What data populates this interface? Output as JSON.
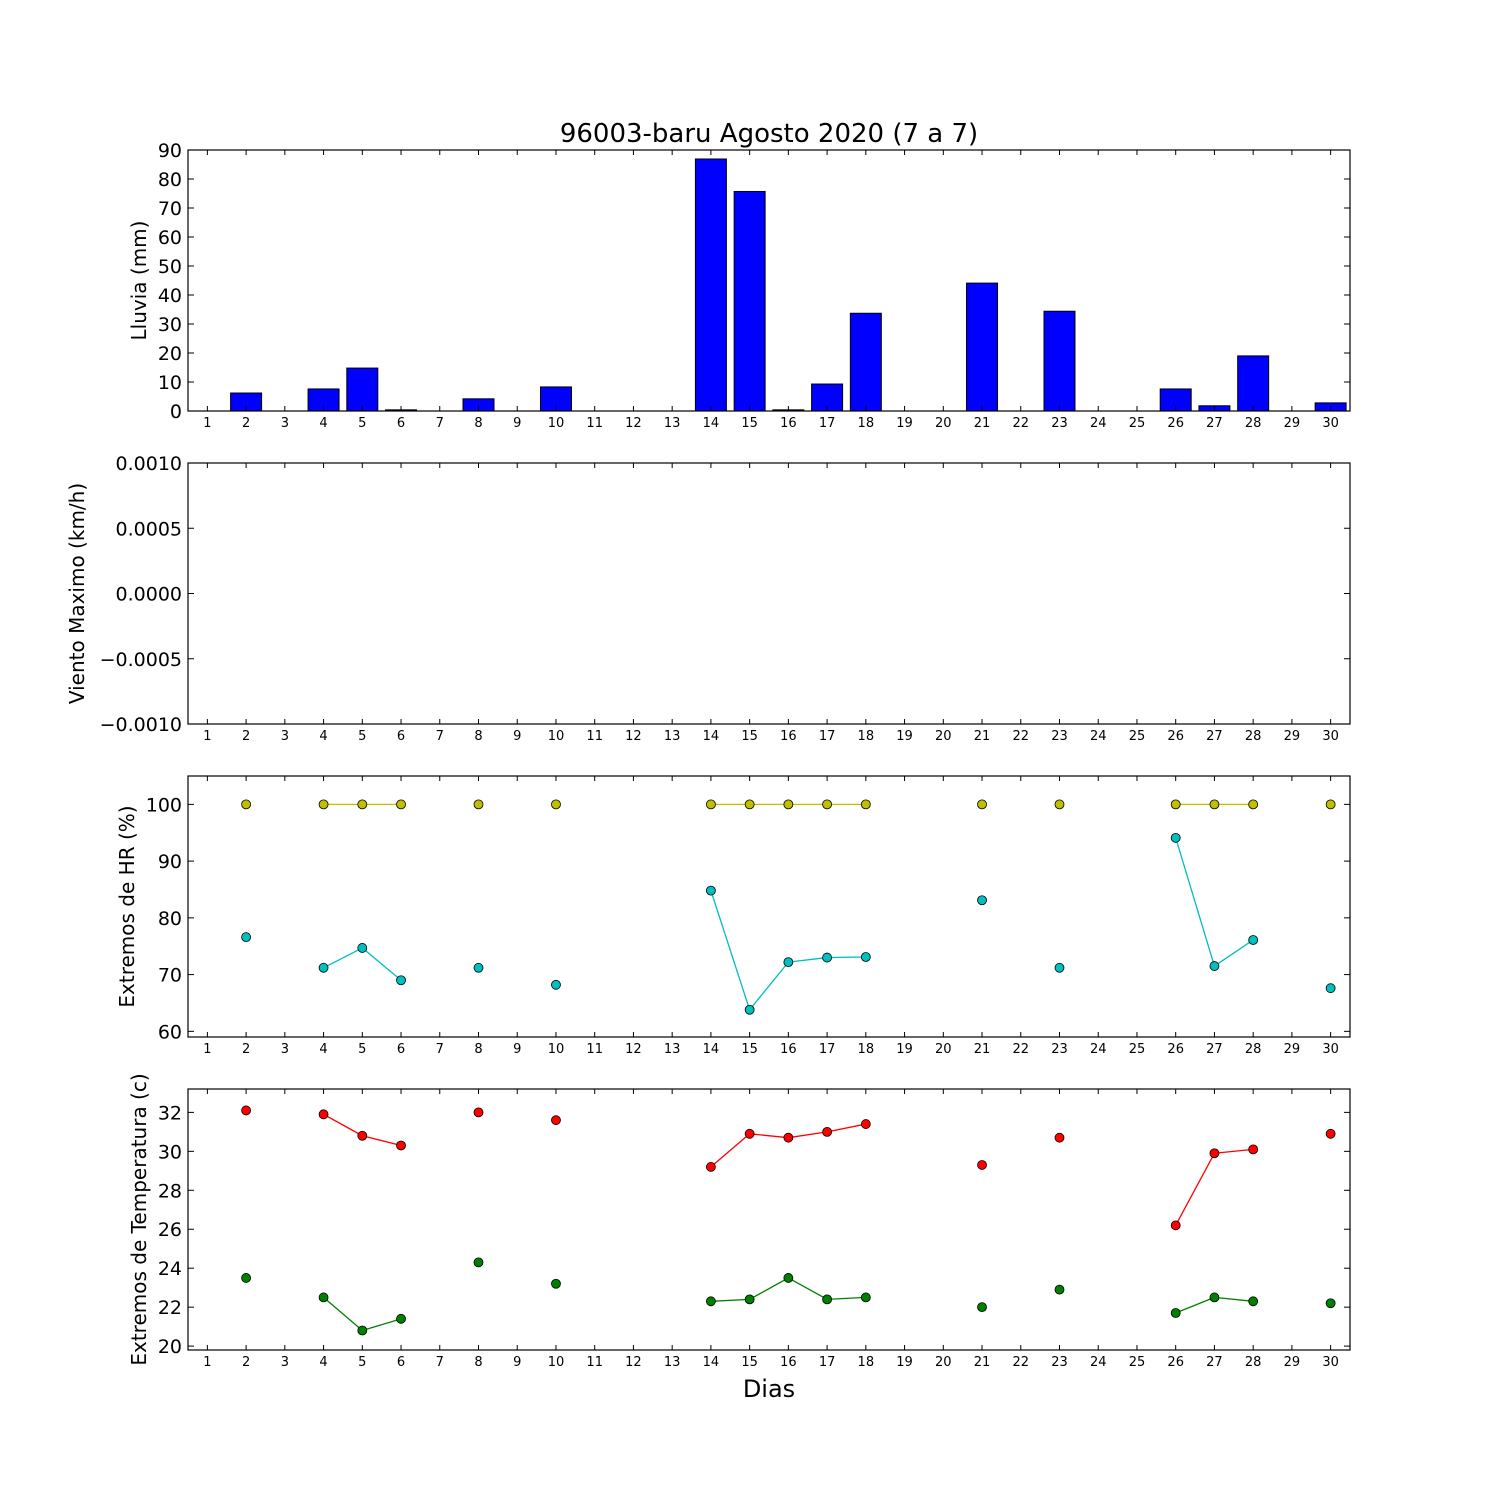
{
  "figure_title": "96003-baru Agosto 2020  (7 a 7)",
  "shared_xlabel": "Dias",
  "colors": {
    "bar": "#0000ff",
    "hr_max": "#bfbf00",
    "hr_min": "#00bfbf",
    "t_max": "#ff0000",
    "t_min": "#008000"
  },
  "chart_data": [
    {
      "type": "bar",
      "ylabel": "Lluvia (mm)",
      "ylim": [
        0,
        90
      ],
      "yticks": [
        "0",
        "10",
        "20",
        "30",
        "40",
        "50",
        "60",
        "70",
        "80",
        "90"
      ],
      "xticks": [
        "1",
        "2",
        "3",
        "4",
        "5",
        "6",
        "7",
        "8",
        "9",
        "10",
        "11",
        "12",
        "13",
        "14",
        "15",
        "16",
        "17",
        "18",
        "19",
        "20",
        "21",
        "22",
        "23",
        "24",
        "25",
        "26",
        "27",
        "28",
        "29",
        "30"
      ],
      "series": [
        {
          "x": [
            2,
            4,
            5,
            6,
            8,
            10,
            14,
            15,
            16,
            17,
            18,
            21,
            23,
            26,
            27,
            28,
            30
          ],
          "values": [
            6.2,
            7.6,
            14.8,
            0.4,
            4.2,
            8.3,
            86.9,
            75.7,
            0.4,
            9.3,
            33.7,
            44.1,
            34.4,
            7.6,
            1.8,
            19.0,
            2.8
          ]
        }
      ]
    },
    {
      "type": "line",
      "ylabel": "Viento Maximo (km/h)",
      "ylim": [
        -0.001,
        0.001
      ],
      "yticks": [
        "−0.0010",
        "−0.0005",
        "0.0000",
        "0.0005",
        "0.0010"
      ],
      "xticks": [
        "1",
        "2",
        "3",
        "4",
        "5",
        "6",
        "7",
        "8",
        "9",
        "10",
        "11",
        "12",
        "13",
        "14",
        "15",
        "16",
        "17",
        "18",
        "19",
        "20",
        "21",
        "22",
        "23",
        "24",
        "25",
        "26",
        "27",
        "28",
        "29",
        "30"
      ],
      "series": []
    },
    {
      "type": "line",
      "ylabel": "Extremos de HR (%)",
      "ylim": [
        59,
        105
      ],
      "yticks": [
        "60",
        "70",
        "80",
        "90",
        "100"
      ],
      "xticks": [
        "1",
        "2",
        "3",
        "4",
        "5",
        "6",
        "7",
        "8",
        "9",
        "10",
        "11",
        "12",
        "13",
        "14",
        "15",
        "16",
        "17",
        "18",
        "19",
        "20",
        "21",
        "22",
        "23",
        "24",
        "25",
        "26",
        "27",
        "28",
        "29",
        "30"
      ],
      "series": [
        {
          "key": "hr_max",
          "x": [
            2,
            4,
            5,
            6,
            8,
            10,
            14,
            15,
            16,
            17,
            18,
            21,
            23,
            26,
            27,
            28,
            30
          ],
          "values": [
            100,
            100,
            100,
            100,
            100,
            100,
            100,
            100,
            100,
            100,
            100,
            100,
            100,
            100,
            100,
            100,
            100
          ]
        },
        {
          "key": "hr_min",
          "x": [
            2,
            4,
            5,
            6,
            8,
            10,
            14,
            15,
            16,
            17,
            18,
            21,
            23,
            26,
            27,
            28,
            30
          ],
          "values": [
            76.6,
            71.2,
            74.7,
            69.0,
            71.2,
            68.2,
            84.8,
            63.8,
            72.2,
            73.0,
            73.1,
            83.1,
            71.2,
            94.1,
            71.5,
            76.1,
            67.6
          ]
        }
      ]
    },
    {
      "type": "line",
      "ylabel": "Extremos de Temperatura (c)",
      "ylim": [
        19.8,
        33.2
      ],
      "yticks": [
        "20",
        "22",
        "24",
        "26",
        "28",
        "30",
        "32"
      ],
      "xticks": [
        "1",
        "2",
        "3",
        "4",
        "5",
        "6",
        "7",
        "8",
        "9",
        "10",
        "11",
        "12",
        "13",
        "14",
        "15",
        "16",
        "17",
        "18",
        "19",
        "20",
        "21",
        "22",
        "23",
        "24",
        "25",
        "26",
        "27",
        "28",
        "29",
        "30"
      ],
      "series": [
        {
          "key": "t_max",
          "x": [
            2,
            4,
            5,
            6,
            8,
            10,
            14,
            15,
            16,
            17,
            18,
            21,
            23,
            26,
            27,
            28,
            30
          ],
          "values": [
            32.1,
            31.9,
            30.8,
            30.3,
            32.0,
            31.6,
            29.2,
            30.9,
            30.7,
            31.0,
            31.4,
            29.3,
            30.7,
            26.2,
            29.9,
            30.1,
            30.9
          ]
        },
        {
          "key": "t_min",
          "x": [
            2,
            4,
            5,
            6,
            8,
            10,
            14,
            15,
            16,
            17,
            18,
            21,
            23,
            26,
            27,
            28,
            30
          ],
          "values": [
            23.5,
            22.5,
            20.8,
            21.4,
            24.3,
            23.2,
            22.3,
            22.4,
            23.5,
            22.4,
            22.5,
            22.0,
            22.9,
            21.7,
            22.5,
            22.3,
            22.2
          ]
        }
      ]
    }
  ]
}
